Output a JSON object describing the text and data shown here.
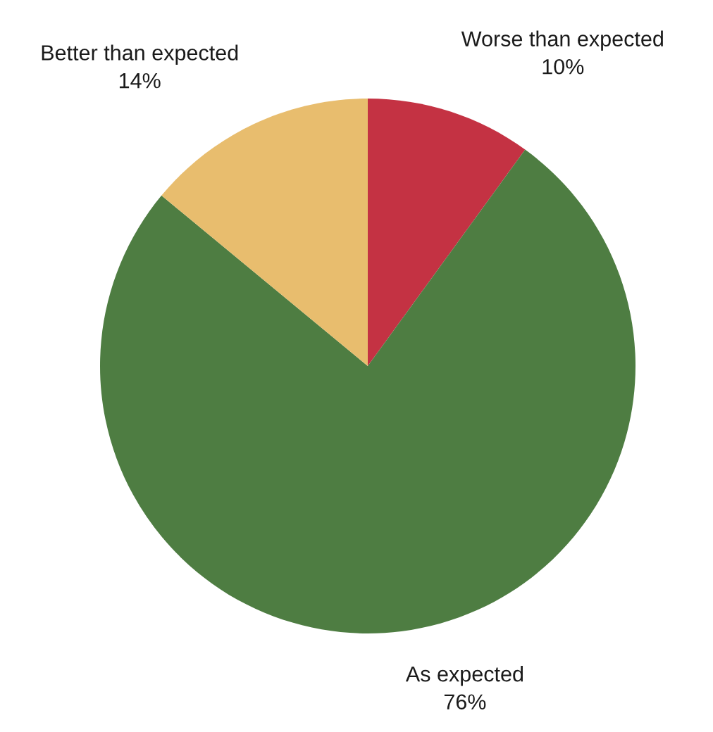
{
  "chart_data": {
    "type": "pie",
    "categories": [
      "Worse than expected",
      "As expected",
      "Better than expected"
    ],
    "values": [
      10,
      76,
      14
    ],
    "value_labels": [
      "10%",
      "76%",
      "14%"
    ],
    "colors": [
      "#c43243",
      "#4e7d42",
      "#e8bd6e"
    ]
  }
}
